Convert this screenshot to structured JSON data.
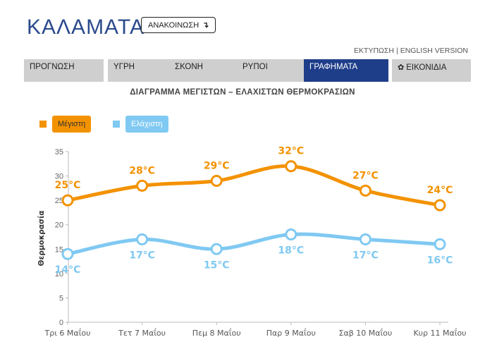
{
  "header": {
    "city": "ΚΑΛΑΜΑΤΑ",
    "announce_label": "ΑΝΑΚΟΙΝΩΣΗ",
    "announce_icon": "arrow-down-icon"
  },
  "top_links": {
    "print": "ΕΚΤΥΠΩΣΗ",
    "separator": "|",
    "english": "ENGLISH VERSION"
  },
  "tabs": [
    {
      "label": "ΠΡΟΓΝΩΣΗ",
      "active": false
    },
    {
      "label": "ΥΓΡΗ",
      "active": false
    },
    {
      "label": "ΣΚΟΝΗ",
      "active": false
    },
    {
      "label": "ΡΥΠΟΙ",
      "active": false
    },
    {
      "label": "ΓΡΑΦΗΜΑΤΑ",
      "active": true
    },
    {
      "label": "ΕΙΚΟΝΙΔΙΑ",
      "active": false,
      "icon": "gear-icon"
    }
  ],
  "colors": {
    "accent_blue": "#1f3e8a",
    "max_series": "#f39200",
    "min_series": "#7fc9f2"
  },
  "chart_data": {
    "type": "line",
    "title": "ΔΙΑΓΡΑΜΜΑ ΜΕΓΙΣΤΩΝ – ΕΛΑΧΙΣΤΩΝ ΘΕΡΜΟΚΡΑΣΙΩΝ",
    "ylabel": "Θερμοκρασία",
    "xlabel": "",
    "ylim": [
      0,
      35
    ],
    "yticks": [
      0,
      5,
      10,
      15,
      20,
      25,
      30,
      35
    ],
    "categories": [
      "Τρι 6 Μαΐου",
      "Τετ 7 Μαΐου",
      "Πεμ 8 Μαΐου",
      "Παρ 9 Μαΐου",
      "Σαβ 10 Μαΐου",
      "Κυρ 11 Μαΐου"
    ],
    "series": [
      {
        "name": "Μέγιστη",
        "color": "#f39200",
        "values": [
          25,
          28,
          29,
          32,
          27,
          24
        ],
        "labels": [
          "25°C",
          "28°C",
          "29°C",
          "32°C",
          "27°C",
          "24°C"
        ],
        "label_position": "above"
      },
      {
        "name": "Ελάχιστη",
        "color": "#7fc9f2",
        "values": [
          14,
          17,
          15,
          18,
          17,
          16
        ],
        "labels": [
          "14°C",
          "17°C",
          "15°C",
          "18°C",
          "17°C",
          "16°C"
        ],
        "label_position": "below"
      }
    ],
    "grid": false,
    "legend_position": "top-left"
  }
}
